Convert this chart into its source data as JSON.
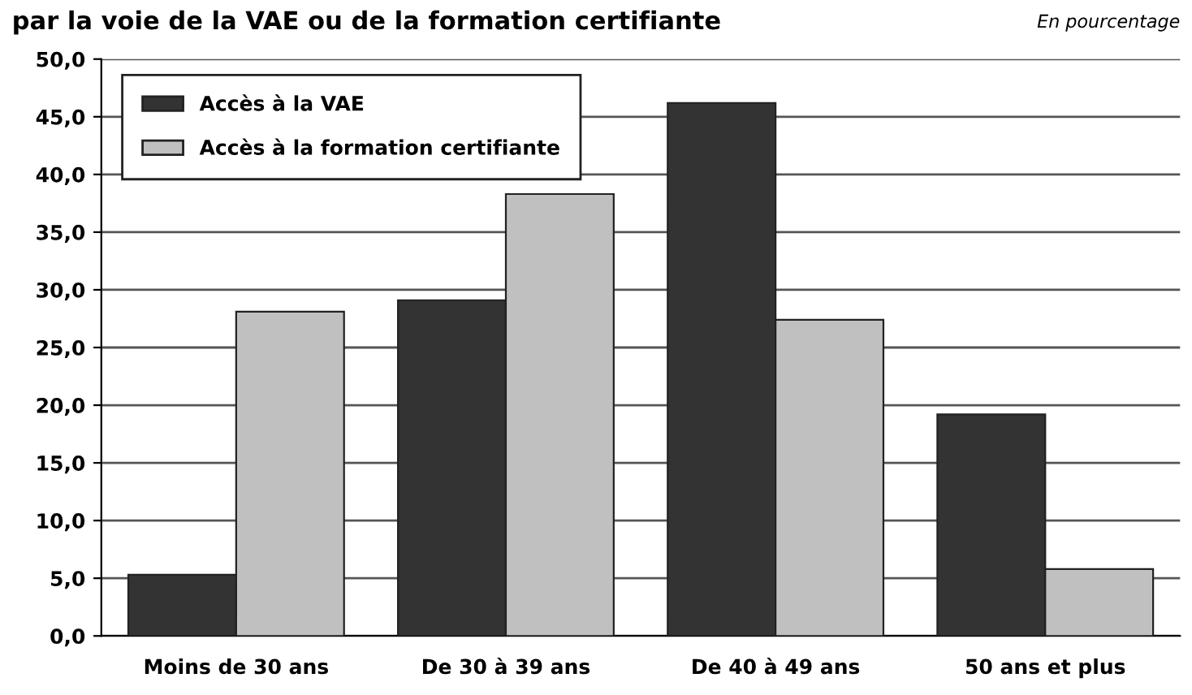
{
  "chart_data": {
    "type": "bar",
    "title": "par la voie de la VAE ou de la formation certifiante",
    "annotations": [
      "En pourcentage"
    ],
    "categories": [
      "Moins de 30 ans",
      "De 30 à 39 ans",
      "De 40 à 49 ans",
      "50 ans et plus"
    ],
    "series": [
      {
        "name": "Accès à la VAE",
        "color": "#333333",
        "values": [
          5.3,
          29.1,
          46.2,
          19.2
        ]
      },
      {
        "name": "Accès à la formation certifiante",
        "color": "#c0c0c0",
        "values": [
          28.1,
          38.3,
          27.4,
          5.8
        ]
      }
    ],
    "ylim": [
      0,
      50
    ],
    "yticks": [
      {
        "value": 0,
        "label": "0,0"
      },
      {
        "value": 5,
        "label": "5,0"
      },
      {
        "value": 10,
        "label": "10,0"
      },
      {
        "value": 15,
        "label": "15,0"
      },
      {
        "value": 20,
        "label": "20,0"
      },
      {
        "value": 25,
        "label": "25,0"
      },
      {
        "value": 30,
        "label": "30,0"
      },
      {
        "value": 35,
        "label": "35,0"
      },
      {
        "value": 40,
        "label": "40,0"
      },
      {
        "value": 45,
        "label": "45,0"
      },
      {
        "value": 50,
        "label": "50,0"
      }
    ],
    "grid": "y",
    "legend": "top left"
  }
}
